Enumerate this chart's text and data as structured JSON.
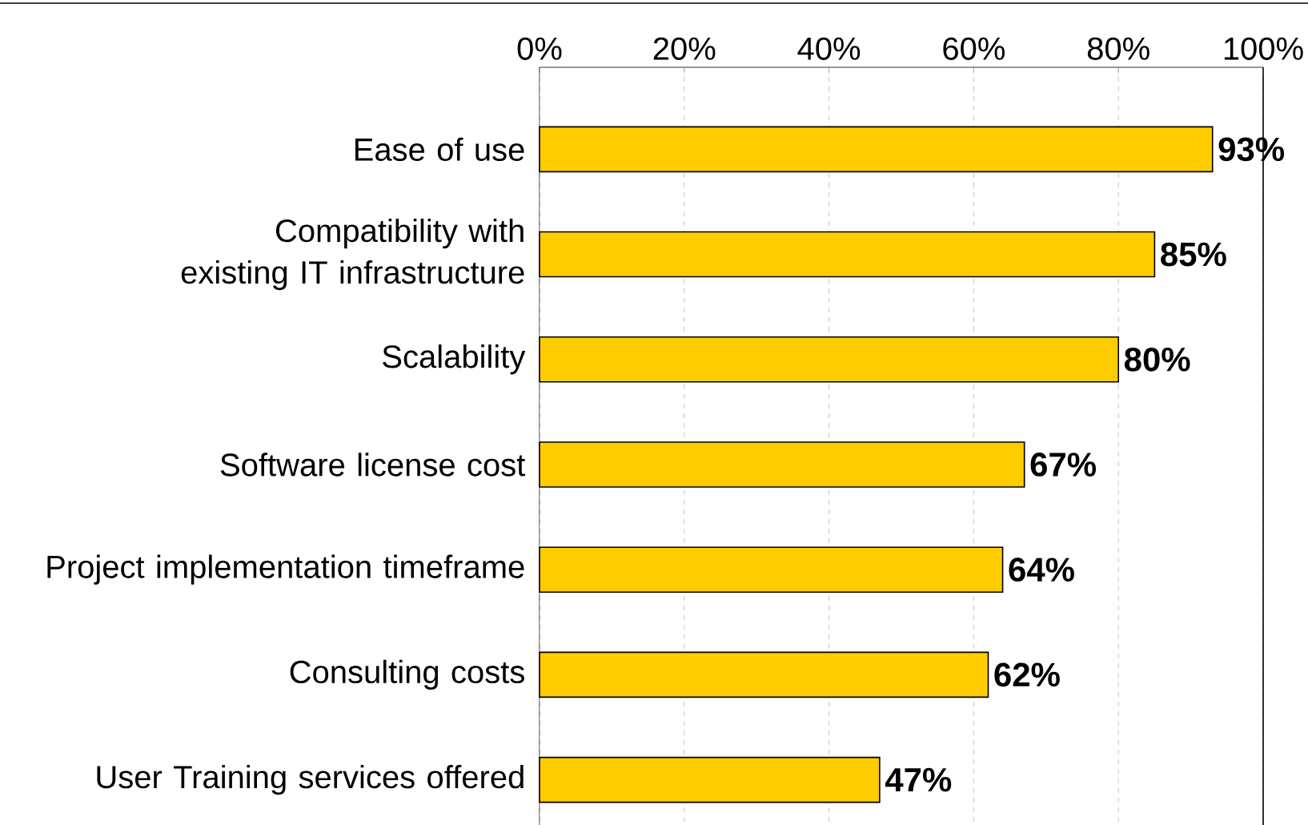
{
  "chart_data": {
    "type": "bar",
    "orientation": "horizontal",
    "categories": [
      "Ease of use",
      "Compatibility with existing IT infrastructure",
      "Scalability",
      "Software license cost",
      "Project implementation timeframe",
      "Consulting costs",
      "User Training services offered"
    ],
    "values": [
      93,
      85,
      80,
      67,
      64,
      62,
      47
    ],
    "value_labels": [
      "93%",
      "85%",
      "80%",
      "67%",
      "64%",
      "62%",
      "47%"
    ],
    "color": "#ffcc00",
    "xlim": [
      0,
      100
    ],
    "xticks": [
      {
        "value": 0,
        "label": "0%"
      },
      {
        "value": 20,
        "label": "20%"
      },
      {
        "value": 40,
        "label": "40%"
      },
      {
        "value": 60,
        "label": "60%"
      },
      {
        "value": 80,
        "label": "80%"
      },
      {
        "value": 100,
        "label": "100%"
      }
    ],
    "grid": "x"
  }
}
